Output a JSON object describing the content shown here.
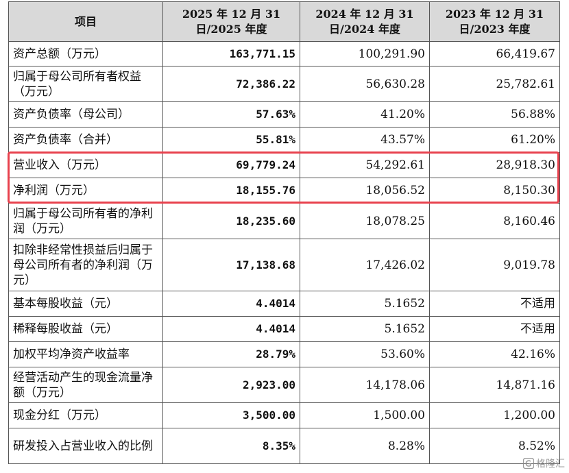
{
  "headers": [
    "项目",
    "2025 年 12 月 31 日/2025 年度",
    "2024 年 12 月 31 日/2024 年度",
    "2023 年 12 月 31 日/2023 年度"
  ],
  "rows": [
    {
      "label": "资产总额（万元）",
      "v2025": "163,771.15",
      "v2024": "100,291.90",
      "v2023": "66,419.67"
    },
    {
      "label": "归属于母公司所有者权益（万元）",
      "v2025": "72,386.22",
      "v2024": "56,630.28",
      "v2023": "25,782.61"
    },
    {
      "label": "资产负债率（母公司）",
      "v2025": "57.63%",
      "v2024": "41.20%",
      "v2023": "56.88%"
    },
    {
      "label": "资产负债率（合并）",
      "v2025": "55.81%",
      "v2024": "43.57%",
      "v2023": "61.20%"
    },
    {
      "label": "营业收入（万元）",
      "v2025": "69,779.24",
      "v2024": "54,292.61",
      "v2023": "28,918.30"
    },
    {
      "label": "净利润（万元）",
      "v2025": "18,155.76",
      "v2024": "18,056.52",
      "v2023": "8,150.30"
    },
    {
      "label": "归属于母公司所有者的净利润（万元）",
      "v2025": "18,235.60",
      "v2024": "18,078.25",
      "v2023": "8,160.46"
    },
    {
      "label": "扣除非经常性损益后归属于母公司所有者的净利润（万元）",
      "v2025": "17,138.68",
      "v2024": "17,426.02",
      "v2023": "9,019.78"
    },
    {
      "label": "基本每股收益（元）",
      "v2025": "4.4014",
      "v2024": "5.1652",
      "v2023": "不适用"
    },
    {
      "label": "稀释每股收益（元）",
      "v2025": "4.4014",
      "v2024": "5.1652",
      "v2023": "不适用"
    },
    {
      "label": "加权平均净资产收益率",
      "v2025": "28.79%",
      "v2024": "53.60%",
      "v2023": "42.16%"
    },
    {
      "label": "经营活动产生的现金流量净额（万元）",
      "v2025": "2,923.00",
      "v2024": "14,178.06",
      "v2023": "14,871.16"
    },
    {
      "label": "现金分红（万元）",
      "v2025": "3,500.00",
      "v2024": "1,500.00",
      "v2023": "1,200.00"
    },
    {
      "label": "研发投入占营业收入的比例",
      "v2025": "8.35%",
      "v2024": "8.28%",
      "v2023": "8.52%"
    }
  ],
  "colors": {
    "header_bg": "#d9d9d9",
    "highlight": "#e8414d",
    "border": "#555555"
  },
  "watermark": {
    "text": "格隆汇",
    "icon": "logo-g-icon"
  }
}
